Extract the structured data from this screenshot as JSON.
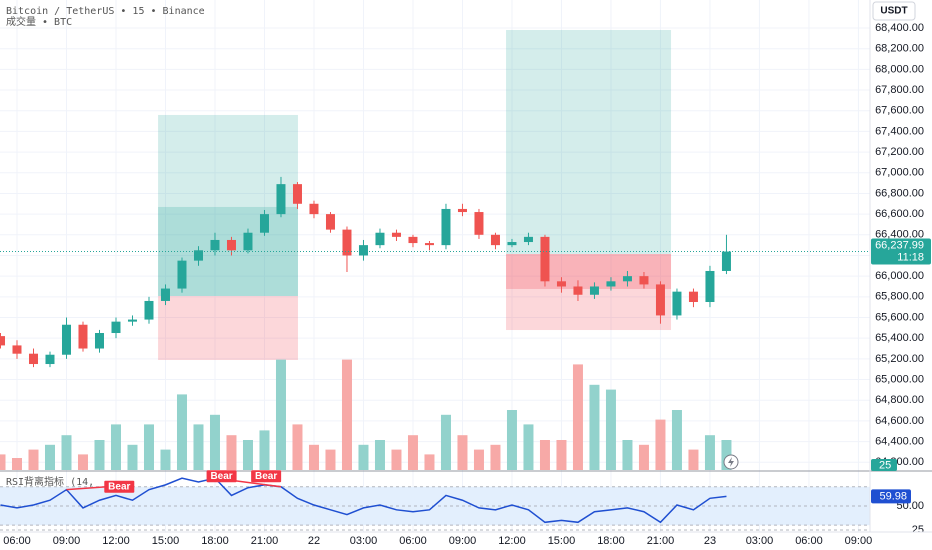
{
  "currency_button": "USDT",
  "chart_data": [
    {
      "type": "candlestick",
      "title": "Bitcoin / TetherUS • 15 • Binance",
      "x": [
        -1,
        0,
        1,
        2,
        3,
        4,
        5,
        6,
        7,
        8,
        9,
        10,
        11,
        12,
        13,
        14,
        15,
        16,
        17,
        18,
        19,
        20,
        21,
        22,
        23,
        24,
        25,
        26,
        27,
        28,
        29,
        30,
        31,
        32,
        33,
        34,
        35,
        36,
        37,
        38,
        39,
        40,
        41,
        42,
        43
      ],
      "open": [
        65420,
        65330,
        65250,
        65150,
        65240,
        65530,
        65300,
        65450,
        65560,
        65580,
        65760,
        65880,
        66150,
        66250,
        66350,
        66250,
        66420,
        66600,
        66890,
        66700,
        66600,
        66450,
        66200,
        66300,
        66420,
        66380,
        66320,
        66300,
        66650,
        66620,
        66400,
        66300,
        66330,
        66380,
        65950,
        65900,
        65820,
        65900,
        65950,
        66000,
        65920,
        65620,
        65850,
        65750,
        66050
      ],
      "high": [
        65450,
        65380,
        65300,
        65270,
        65600,
        65560,
        65480,
        65600,
        65620,
        65800,
        65920,
        66180,
        66290,
        66420,
        66380,
        66460,
        66640,
        66960,
        66910,
        66730,
        66620,
        66480,
        66350,
        66460,
        66450,
        66400,
        66340,
        66700,
        66700,
        66650,
        66420,
        66360,
        66420,
        66400,
        65990,
        65960,
        65940,
        65990,
        66050,
        66040,
        65950,
        65880,
        65880,
        66100,
        66400
      ],
      "low": [
        65300,
        65200,
        65120,
        65120,
        65200,
        65270,
        65260,
        65400,
        65520,
        65540,
        65720,
        65840,
        66100,
        66200,
        66200,
        66220,
        66390,
        66570,
        66650,
        66560,
        66420,
        66040,
        66150,
        66270,
        66340,
        66280,
        66250,
        66260,
        66580,
        66360,
        66260,
        66280,
        66300,
        65900,
        65840,
        65760,
        65780,
        65860,
        65900,
        65880,
        65540,
        65580,
        65700,
        65700,
        66020
      ],
      "close": [
        65330,
        65250,
        65150,
        65240,
        65530,
        65300,
        65450,
        65560,
        65580,
        65760,
        65880,
        66150,
        66250,
        66350,
        66250,
        66420,
        66600,
        66890,
        66700,
        66600,
        66450,
        66200,
        66300,
        66420,
        66380,
        66320,
        66300,
        66650,
        66620,
        66400,
        66300,
        66330,
        66380,
        65950,
        65900,
        65820,
        65900,
        65950,
        66000,
        65920,
        65620,
        65850,
        65750,
        66050,
        66237.99
      ],
      "up_color": "#26a69a",
      "down_color": "#ef5350",
      "last_price": {
        "value": 66237.99,
        "label": "66,237.99",
        "countdown": "11:18"
      },
      "positions": [
        {
          "start": 8.55,
          "end": 17.03,
          "target": 67559,
          "entry": 65808,
          "stop": 65189,
          "fill": 66669
        },
        {
          "start": 29.64,
          "end": 39.64,
          "target": 68381,
          "entry": 66214,
          "stop": 65479,
          "fill": 65876
        }
      ],
      "xlim": [
        -1.03,
        51.7
      ],
      "xticks": [
        {
          "value": 0,
          "label": "06:00"
        },
        {
          "value": 3,
          "label": "09:00"
        },
        {
          "value": 6,
          "label": "12:00"
        },
        {
          "value": 9,
          "label": "15:00"
        },
        {
          "value": 12,
          "label": "18:00"
        },
        {
          "value": 15,
          "label": "21:00"
        },
        {
          "value": 18,
          "label": "22"
        },
        {
          "value": 21,
          "label": "03:00"
        },
        {
          "value": 24,
          "label": "06:00"
        },
        {
          "value": 27,
          "label": "09:00"
        },
        {
          "value": 30,
          "label": "12:00"
        },
        {
          "value": 33,
          "label": "15:00"
        },
        {
          "value": 36,
          "label": "18:00"
        },
        {
          "value": 39,
          "label": "21:00"
        },
        {
          "value": 42,
          "label": "23"
        },
        {
          "value": 45,
          "label": "03:00"
        },
        {
          "value": 48,
          "label": "06:00"
        },
        {
          "value": 51,
          "label": "09:00"
        }
      ],
      "ylim": [
        64125,
        68671
      ],
      "yticks": [
        {
          "value": 64200,
          "label": "64,200.00"
        },
        {
          "value": 64400,
          "label": "64,400.00"
        },
        {
          "value": 64600,
          "label": "64,600.00"
        },
        {
          "value": 64800,
          "label": "64,800.00"
        },
        {
          "value": 65000,
          "label": "65,000.00"
        },
        {
          "value": 65200,
          "label": "65,200.00"
        },
        {
          "value": 65400,
          "label": "65,400.00"
        },
        {
          "value": 65600,
          "label": "65,600.00"
        },
        {
          "value": 65800,
          "label": "65,800.00"
        },
        {
          "value": 66000,
          "label": "66,000.00"
        },
        {
          "value": 66200,
          "label": "66,200.00"
        },
        {
          "value": 66400,
          "label": "66,400.00"
        },
        {
          "value": 66600,
          "label": "66,600.00"
        },
        {
          "value": 66800,
          "label": "66,800.00"
        },
        {
          "value": 67000,
          "label": "67,000.00"
        },
        {
          "value": 67200,
          "label": "67,200.00"
        },
        {
          "value": 67400,
          "label": "67,400.00"
        },
        {
          "value": 67600,
          "label": "67,600.00"
        },
        {
          "value": 67800,
          "label": "67,800.00"
        },
        {
          "value": 68000,
          "label": "68,000.00"
        },
        {
          "value": 68200,
          "label": "68,200.00"
        },
        {
          "value": 68400,
          "label": "68,400.00"
        }
      ],
      "grid": true
    },
    {
      "type": "volume",
      "title": "成交量 • BTC",
      "values": [
        13,
        10,
        17,
        21,
        29,
        13,
        25,
        38,
        21,
        38,
        17,
        63,
        38,
        46,
        29,
        25,
        33,
        92,
        38,
        21,
        17,
        92,
        21,
        25,
        17,
        29,
        13,
        46,
        29,
        17,
        21,
        50,
        38,
        25,
        25,
        88,
        71,
        67,
        25,
        21,
        42,
        50,
        17,
        29,
        25
      ],
      "up_color": "#92d2cc",
      "down_color": "#f7a9a7",
      "ylim": [
        0,
        100
      ]
    },
    {
      "type": "line",
      "title": "RSI背离指标 (14,",
      "values": [
        51,
        48,
        51,
        56,
        67,
        48,
        56,
        61,
        56,
        67,
        72,
        79,
        75,
        79,
        61,
        69,
        72,
        70,
        58,
        51,
        46,
        41,
        48,
        51,
        46,
        44,
        46,
        61,
        56,
        48,
        46,
        51,
        46,
        33,
        35,
        33,
        44,
        46,
        48,
        44,
        33,
        51,
        46,
        58,
        59.98
      ],
      "color": "#1f4fd1",
      "band": [
        30,
        70
      ],
      "band_color": "#e3effd",
      "divergences": [
        {
          "x": [
            3,
            7
          ],
          "values": [
            67,
            72
          ]
        },
        {
          "x": [
            12,
            16
          ],
          "values": [
            79,
            70
          ]
        }
      ],
      "divergence_color": "#f23645",
      "signals": [
        {
          "x": 6.2,
          "value": 70,
          "label": "Bear"
        },
        {
          "x": 12.4,
          "value": 81,
          "label": "Bear"
        },
        {
          "x": 15.1,
          "value": 81,
          "label": "Bear"
        }
      ],
      "ylim": [
        22.9,
        85.4
      ],
      "yticks": [
        25,
        {
          "value": 50,
          "label": "50.00"
        }
      ]
    }
  ]
}
